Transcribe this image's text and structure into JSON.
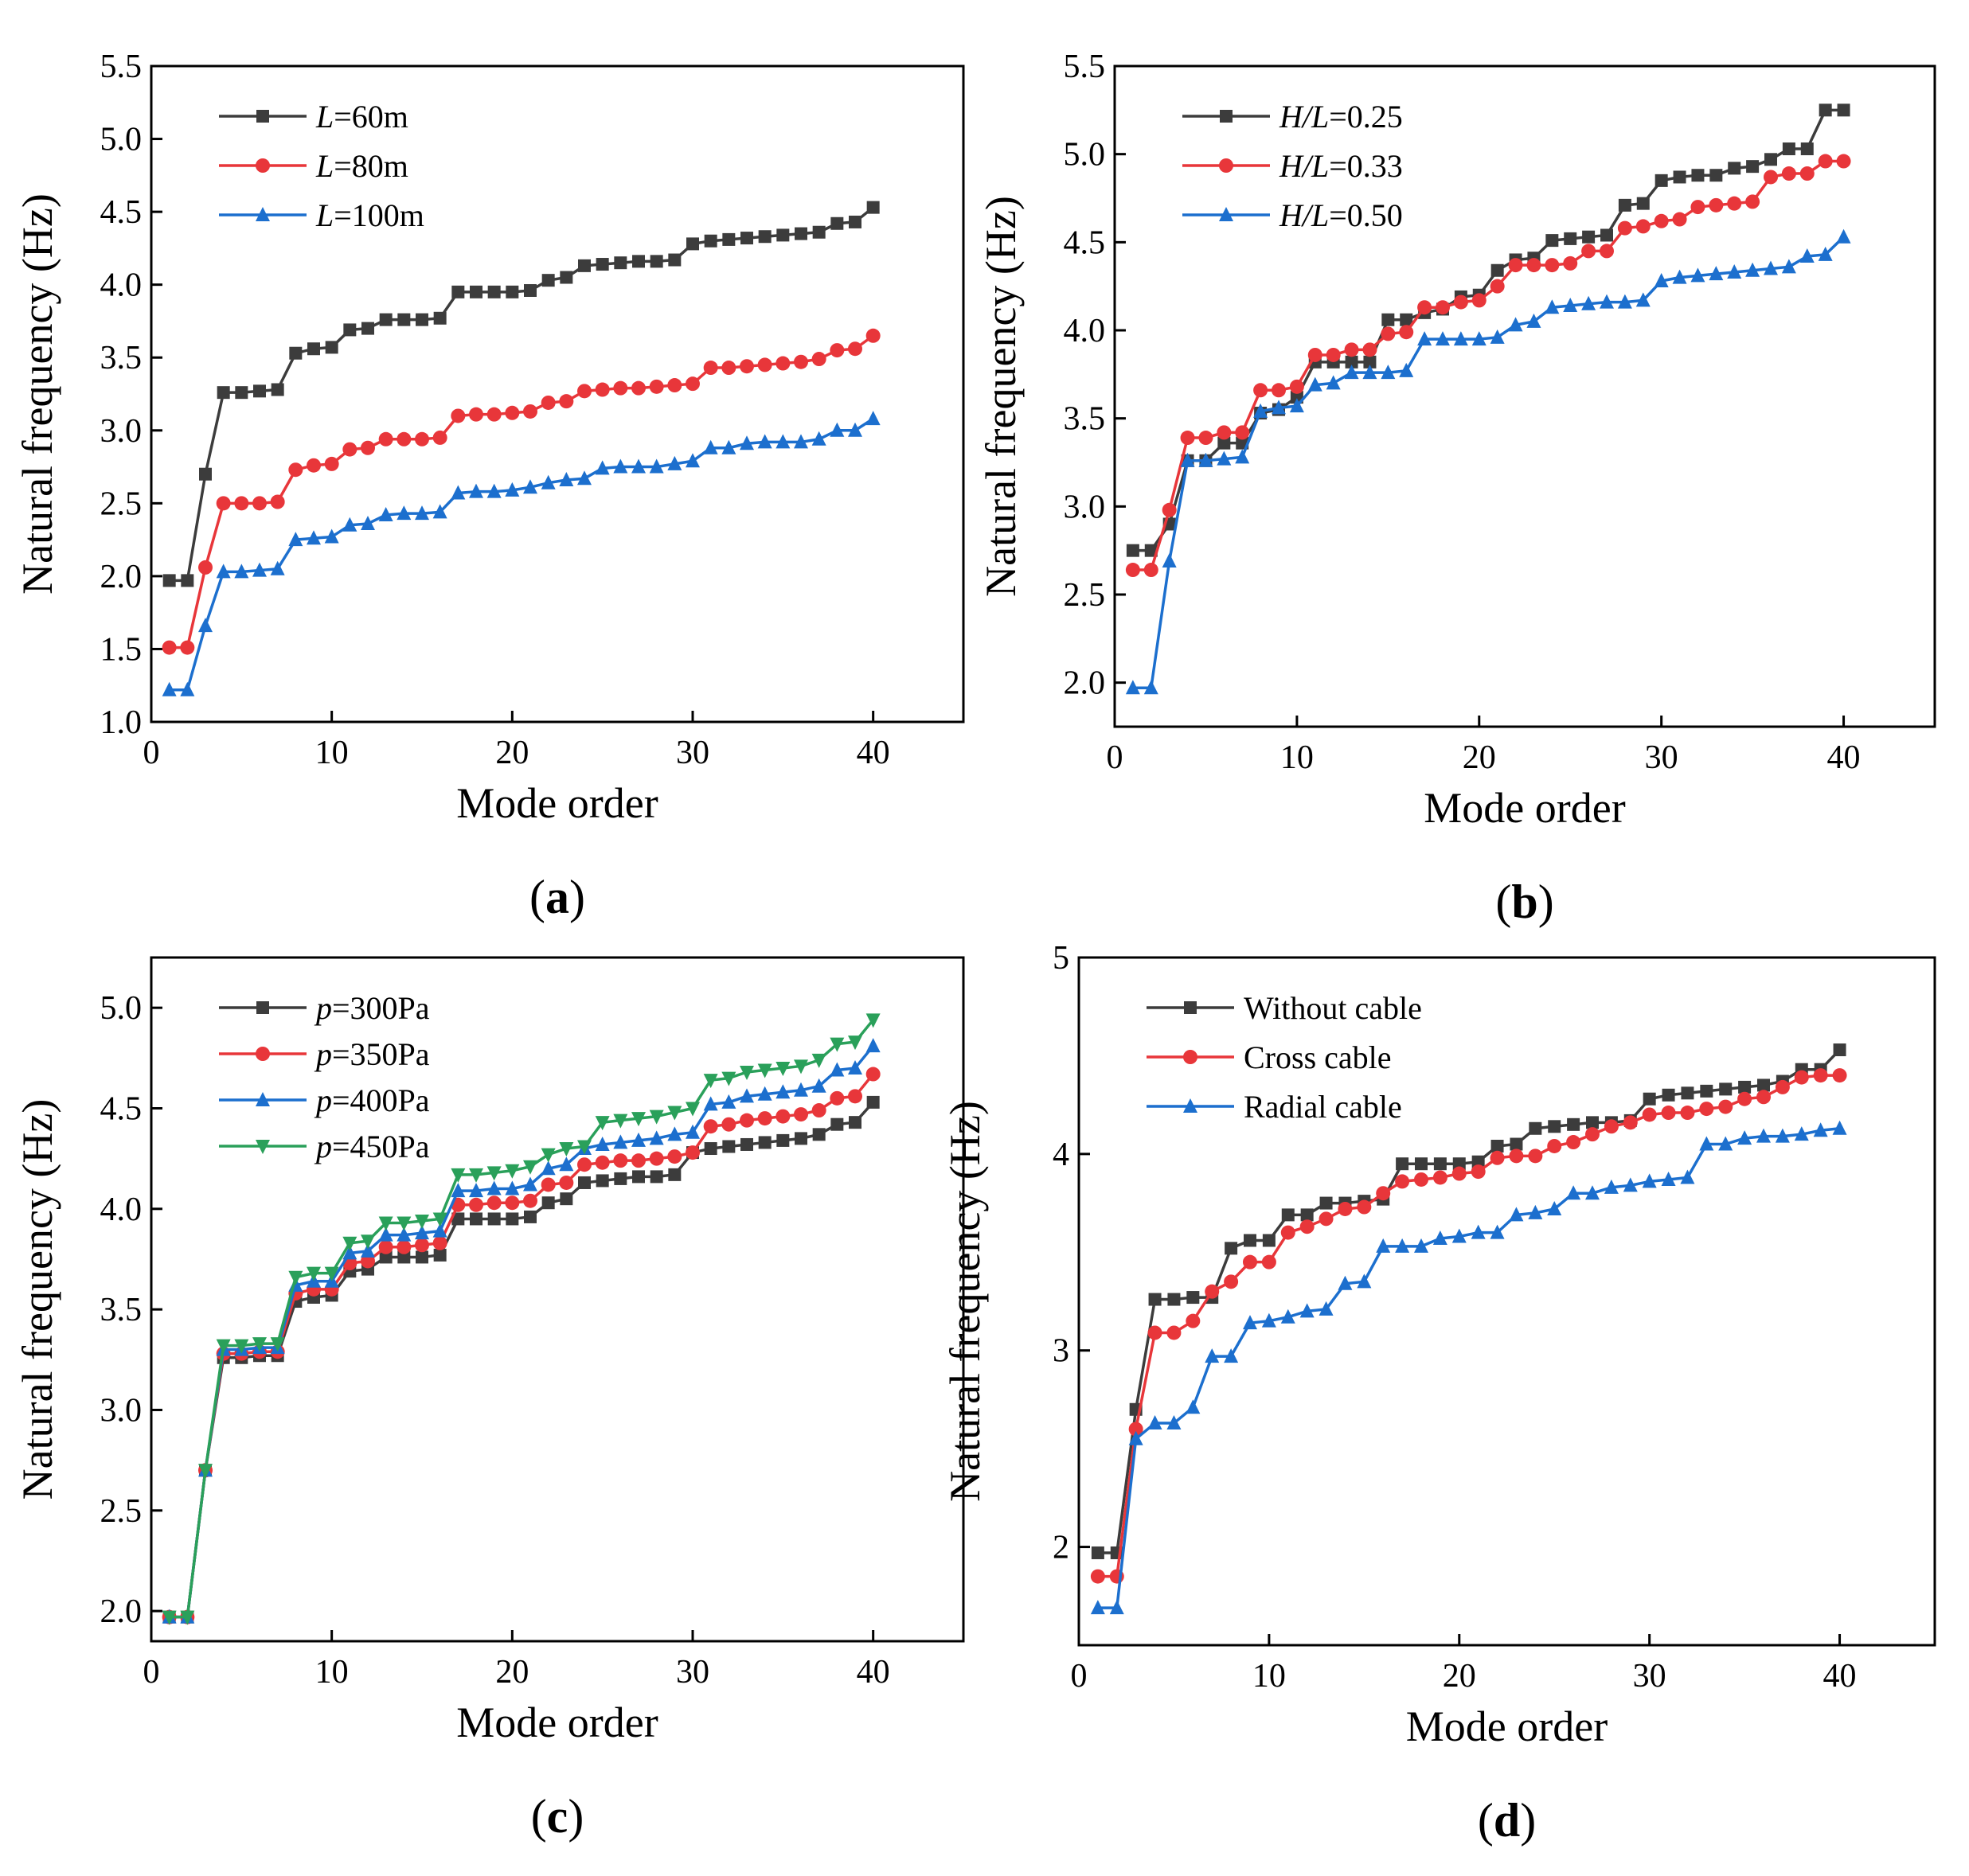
{
  "chart_data": [
    {
      "type": "line",
      "panel_label": "a",
      "xlabel": "Mode order",
      "ylabel": "Natural frequency (Hz)",
      "xlim": [
        0,
        45
      ],
      "ylim": [
        1.0,
        5.5
      ],
      "xticks": [
        0,
        10,
        20,
        30,
        40
      ],
      "xtick_labels": [
        "0",
        "10",
        "20",
        "30",
        "40"
      ],
      "yticks": [
        1.0,
        1.5,
        2.0,
        2.5,
        3.0,
        3.5,
        4.0,
        4.5,
        5.0,
        5.5
      ],
      "ytick_labels": [
        "1.0",
        "1.5",
        "2.0",
        "2.5",
        "3.0",
        "3.5",
        "4.0",
        "4.5",
        "5.0",
        "5.5"
      ],
      "legend_position": "top-left",
      "series": [
        {
          "var": "L",
          "rest": "=60m",
          "color": "#3c3c3c",
          "marker": "square",
          "values": [
            1.97,
            1.97,
            2.7,
            3.26,
            3.26,
            3.27,
            3.28,
            3.53,
            3.56,
            3.57,
            3.69,
            3.7,
            3.76,
            3.76,
            3.76,
            3.77,
            3.95,
            3.95,
            3.95,
            3.95,
            3.96,
            4.03,
            4.05,
            4.13,
            4.14,
            4.15,
            4.16,
            4.16,
            4.17,
            4.28,
            4.3,
            4.31,
            4.32,
            4.33,
            4.34,
            4.35,
            4.36,
            4.42,
            4.43,
            4.53
          ]
        },
        {
          "var": "L",
          "rest": "=80m",
          "color": "#e8363a",
          "marker": "circle",
          "values": [
            1.51,
            1.51,
            2.06,
            2.5,
            2.5,
            2.5,
            2.51,
            2.73,
            2.76,
            2.77,
            2.87,
            2.88,
            2.94,
            2.94,
            2.94,
            2.95,
            3.1,
            3.11,
            3.11,
            3.12,
            3.13,
            3.19,
            3.2,
            3.27,
            3.28,
            3.29,
            3.29,
            3.3,
            3.31,
            3.32,
            3.43,
            3.43,
            3.44,
            3.45,
            3.46,
            3.47,
            3.49,
            3.55,
            3.56,
            3.65
          ]
        },
        {
          "var": "L",
          "rest": "=100m",
          "color": "#1c6fce",
          "marker": "triangle-up",
          "values": [
            1.22,
            1.22,
            1.66,
            2.03,
            2.03,
            2.04,
            2.05,
            2.25,
            2.26,
            2.27,
            2.35,
            2.36,
            2.42,
            2.43,
            2.43,
            2.44,
            2.57,
            2.58,
            2.58,
            2.59,
            2.61,
            2.64,
            2.66,
            2.67,
            2.74,
            2.75,
            2.75,
            2.75,
            2.77,
            2.79,
            2.88,
            2.88,
            2.91,
            2.92,
            2.92,
            2.92,
            2.94,
            3.0,
            3.0,
            3.08
          ]
        }
      ]
    },
    {
      "type": "line",
      "panel_label": "b",
      "xlabel": "Mode order",
      "ylabel": "Natural frequency (Hz)",
      "xlim": [
        0,
        45
      ],
      "ylim": [
        1.75,
        5.5
      ],
      "xticks": [
        0,
        10,
        20,
        30,
        40
      ],
      "xtick_labels": [
        "0",
        "10",
        "20",
        "30",
        "40"
      ],
      "yticks": [
        2.0,
        2.5,
        3.0,
        3.5,
        4.0,
        4.5,
        5.0,
        5.5
      ],
      "ytick_labels": [
        "2.0",
        "2.5",
        "3.0",
        "3.5",
        "4.0",
        "4.5",
        "5.0",
        "5.5"
      ],
      "legend_position": "top-left",
      "series": [
        {
          "var": "H/L",
          "rest": "=0.25",
          "color": "#3c3c3c",
          "marker": "square",
          "values": [
            2.75,
            2.75,
            2.9,
            3.26,
            3.26,
            3.36,
            3.36,
            3.53,
            3.55,
            3.62,
            3.82,
            3.82,
            3.82,
            3.82,
            4.06,
            4.06,
            4.1,
            4.12,
            4.19,
            4.2,
            4.34,
            4.4,
            4.41,
            4.51,
            4.52,
            4.53,
            4.54,
            4.71,
            4.72,
            4.85,
            4.87,
            4.88,
            4.88,
            4.92,
            4.93,
            4.97,
            5.03,
            5.03,
            5.25,
            5.25
          ]
        },
        {
          "var": "H/L",
          "rest": "=0.33",
          "color": "#e8363a",
          "marker": "circle",
          "values": [
            2.64,
            2.64,
            2.98,
            3.39,
            3.39,
            3.42,
            3.42,
            3.66,
            3.66,
            3.68,
            3.86,
            3.86,
            3.89,
            3.89,
            3.98,
            3.99,
            4.13,
            4.13,
            4.16,
            4.17,
            4.25,
            4.37,
            4.37,
            4.37,
            4.38,
            4.45,
            4.45,
            4.58,
            4.59,
            4.62,
            4.63,
            4.7,
            4.71,
            4.72,
            4.73,
            4.87,
            4.89,
            4.89,
            4.96,
            4.96
          ]
        },
        {
          "var": "H/L",
          "rest": "=0.50",
          "color": "#1c6fce",
          "marker": "triangle-up",
          "values": [
            1.97,
            1.97,
            2.69,
            3.26,
            3.26,
            3.27,
            3.28,
            3.54,
            3.56,
            3.57,
            3.69,
            3.7,
            3.76,
            3.76,
            3.76,
            3.77,
            3.95,
            3.95,
            3.95,
            3.95,
            3.96,
            4.03,
            4.05,
            4.13,
            4.14,
            4.15,
            4.16,
            4.16,
            4.17,
            4.28,
            4.3,
            4.31,
            4.32,
            4.33,
            4.34,
            4.35,
            4.36,
            4.42,
            4.43,
            4.53
          ]
        }
      ]
    },
    {
      "type": "line",
      "panel_label": "c",
      "xlabel": "Mode order",
      "ylabel": "Natural frequency (Hz)",
      "xlim": [
        0,
        45
      ],
      "ylim": [
        1.85,
        5.25
      ],
      "xticks": [
        0,
        10,
        20,
        30,
        40
      ],
      "xtick_labels": [
        "0",
        "10",
        "20",
        "30",
        "40"
      ],
      "yticks": [
        2.0,
        2.5,
        3.0,
        3.5,
        4.0,
        4.5,
        5.0
      ],
      "ytick_labels": [
        "2.0",
        "2.5",
        "3.0",
        "3.5",
        "4.0",
        "4.5",
        "5.0"
      ],
      "legend_position": "top-left",
      "series": [
        {
          "var": "p",
          "rest": "=300Pa",
          "color": "#3c3c3c",
          "marker": "square",
          "values": [
            1.97,
            1.97,
            2.7,
            3.26,
            3.26,
            3.27,
            3.27,
            3.54,
            3.56,
            3.57,
            3.69,
            3.7,
            3.76,
            3.76,
            3.76,
            3.77,
            3.95,
            3.95,
            3.95,
            3.95,
            3.96,
            4.03,
            4.05,
            4.13,
            4.14,
            4.15,
            4.16,
            4.16,
            4.17,
            4.28,
            4.3,
            4.31,
            4.32,
            4.33,
            4.34,
            4.35,
            4.37,
            4.42,
            4.43,
            4.53
          ]
        },
        {
          "var": "p",
          "rest": "=350Pa",
          "color": "#e8363a",
          "marker": "circle",
          "values": [
            1.97,
            1.97,
            2.7,
            3.28,
            3.28,
            3.29,
            3.29,
            3.58,
            3.6,
            3.6,
            3.73,
            3.74,
            3.81,
            3.81,
            3.82,
            3.83,
            4.02,
            4.02,
            4.03,
            4.03,
            4.04,
            4.12,
            4.13,
            4.22,
            4.23,
            4.24,
            4.24,
            4.25,
            4.26,
            4.28,
            4.41,
            4.42,
            4.44,
            4.45,
            4.46,
            4.47,
            4.49,
            4.55,
            4.56,
            4.67
          ]
        },
        {
          "var": "p",
          "rest": "=400Pa",
          "color": "#1c6fce",
          "marker": "triangle-up",
          "values": [
            1.97,
            1.97,
            2.7,
            3.3,
            3.3,
            3.31,
            3.31,
            3.62,
            3.64,
            3.64,
            3.78,
            3.79,
            3.87,
            3.87,
            3.88,
            3.89,
            4.09,
            4.09,
            4.1,
            4.1,
            4.12,
            4.2,
            4.22,
            4.3,
            4.32,
            4.33,
            4.34,
            4.35,
            4.37,
            4.38,
            4.52,
            4.53,
            4.56,
            4.57,
            4.58,
            4.59,
            4.61,
            4.69,
            4.7,
            4.81
          ]
        },
        {
          "var": "p",
          "rest": "=450Pa",
          "color": "#2aa05a",
          "marker": "triangle-down",
          "values": [
            1.97,
            1.97,
            2.7,
            3.32,
            3.32,
            3.33,
            3.33,
            3.66,
            3.68,
            3.68,
            3.83,
            3.84,
            3.93,
            3.93,
            3.94,
            3.95,
            4.17,
            4.17,
            4.18,
            4.19,
            4.21,
            4.27,
            4.3,
            4.31,
            4.43,
            4.44,
            4.45,
            4.46,
            4.48,
            4.5,
            4.64,
            4.65,
            4.68,
            4.69,
            4.7,
            4.71,
            4.74,
            4.82,
            4.83,
            4.94
          ]
        }
      ]
    },
    {
      "type": "line",
      "panel_label": "d",
      "xlabel": "Mode order",
      "ylabel": "Natural frequency (Hz)",
      "xlim": [
        0,
        45
      ],
      "ylim": [
        1.5,
        5.0
      ],
      "xticks": [
        0,
        10,
        20,
        30,
        40
      ],
      "xtick_labels": [
        "0",
        "10",
        "20",
        "30",
        "40"
      ],
      "yticks": [
        2,
        3,
        4,
        5
      ],
      "ytick_labels": [
        "2",
        "3",
        "4",
        "5"
      ],
      "legend_position": "top-left",
      "series": [
        {
          "var": "",
          "rest": "Without cable",
          "color": "#3c3c3c",
          "marker": "square",
          "values": [
            1.97,
            1.97,
            2.7,
            3.26,
            3.26,
            3.27,
            3.27,
            3.52,
            3.56,
            3.56,
            3.69,
            3.69,
            3.75,
            3.75,
            3.76,
            3.77,
            3.95,
            3.95,
            3.95,
            3.95,
            3.96,
            4.04,
            4.05,
            4.13,
            4.14,
            4.15,
            4.16,
            4.16,
            4.17,
            4.28,
            4.3,
            4.31,
            4.32,
            4.33,
            4.34,
            4.35,
            4.37,
            4.43,
            4.43,
            4.53
          ]
        },
        {
          "var": "",
          "rest": "Cross cable",
          "color": "#e8363a",
          "marker": "circle",
          "values": [
            1.85,
            1.85,
            2.6,
            3.09,
            3.09,
            3.15,
            3.3,
            3.35,
            3.45,
            3.45,
            3.6,
            3.63,
            3.67,
            3.72,
            3.73,
            3.8,
            3.86,
            3.87,
            3.88,
            3.9,
            3.91,
            3.98,
            3.99,
            3.99,
            4.04,
            4.06,
            4.1,
            4.14,
            4.16,
            4.2,
            4.21,
            4.21,
            4.23,
            4.24,
            4.28,
            4.29,
            4.34,
            4.39,
            4.4,
            4.4
          ]
        },
        {
          "var": "",
          "rest": "Radial cable",
          "color": "#1c6fce",
          "marker": "triangle-up",
          "values": [
            1.69,
            1.69,
            2.55,
            2.63,
            2.63,
            2.71,
            2.97,
            2.97,
            3.14,
            3.15,
            3.17,
            3.2,
            3.21,
            3.34,
            3.35,
            3.53,
            3.53,
            3.53,
            3.57,
            3.58,
            3.6,
            3.6,
            3.69,
            3.7,
            3.72,
            3.8,
            3.8,
            3.83,
            3.84,
            3.86,
            3.87,
            3.88,
            4.05,
            4.05,
            4.08,
            4.09,
            4.09,
            4.1,
            4.12,
            4.13
          ]
        }
      ]
    }
  ]
}
